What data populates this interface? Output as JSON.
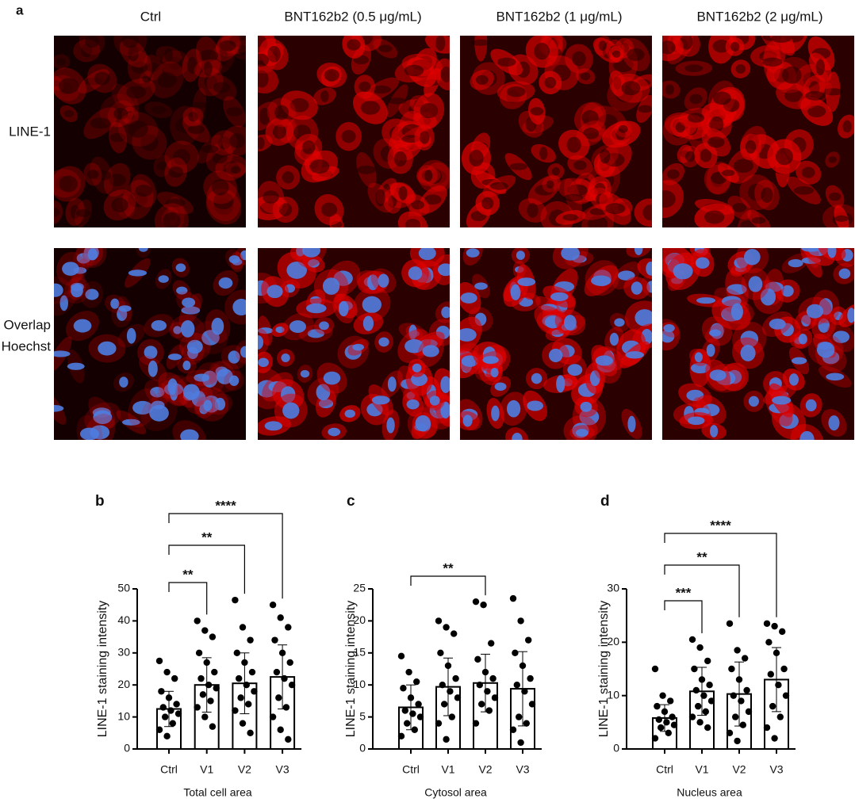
{
  "panel_a": {
    "label": "a",
    "columns": [
      "Ctrl",
      "BNT162b2 (0.5 μg/mL)",
      "BNT162b2 (1 μg/mL)",
      "BNT162b2 (2 μg/mL)"
    ],
    "rows": [
      [
        "LINE-1"
      ],
      [
        "Overlap",
        "Hoechst"
      ]
    ]
  },
  "chart_data": [
    {
      "type": "bar",
      "label": "b",
      "ylabel": "LINE-1 staining intensity",
      "xlabel": "Total cell area",
      "categories": [
        "Ctrl",
        "V1",
        "V2",
        "V3"
      ],
      "values": [
        12.5,
        20,
        20.5,
        22.5
      ],
      "errors": [
        5.5,
        8.5,
        9.5,
        10
      ],
      "points": [
        [
          27.5,
          24,
          22,
          18,
          16,
          14,
          13,
          12,
          11,
          10,
          8,
          6,
          4
        ],
        [
          40,
          37,
          35,
          30,
          27,
          24,
          22,
          20,
          19,
          17,
          15,
          13,
          10,
          7
        ],
        [
          46.5,
          38,
          34,
          30,
          27,
          24,
          22,
          20,
          18,
          16,
          14,
          12,
          8,
          5
        ],
        [
          45,
          41,
          38,
          34,
          30,
          27,
          24,
          22,
          20,
          16,
          13,
          10,
          6,
          3
        ]
      ],
      "color": "#ffffff",
      "point_color": "#000000",
      "ylim": [
        0,
        50
      ],
      "yticks": [
        0,
        10,
        20,
        30,
        40,
        50
      ],
      "annotations": [
        {
          "from": "Ctrl",
          "to": "V1",
          "label": "**"
        },
        {
          "from": "Ctrl",
          "to": "V2",
          "label": "**"
        },
        {
          "from": "Ctrl",
          "to": "V3",
          "label": "****"
        }
      ]
    },
    {
      "type": "bar",
      "label": "c",
      "ylabel": "LINE-1 staining intensity",
      "xlabel": "Cytosol area",
      "categories": [
        "Ctrl",
        "V1",
        "V2",
        "V3"
      ],
      "values": [
        6.5,
        9.7,
        10.3,
        9.4
      ],
      "errors": [
        3.5,
        4.5,
        4.5,
        5.8
      ],
      "points": [
        [
          14.5,
          12,
          10.5,
          9.5,
          8,
          7,
          6,
          5.5,
          5,
          4,
          3,
          2
        ],
        [
          20,
          19,
          18,
          15,
          13,
          11,
          10,
          9,
          8,
          7,
          5,
          4,
          1.5
        ],
        [
          23,
          22.5,
          16.5,
          14,
          12,
          11,
          10,
          9,
          8,
          7,
          6,
          4
        ],
        [
          23.5,
          20,
          17,
          15,
          13,
          11,
          10,
          9,
          7,
          5,
          4,
          3,
          1
        ]
      ],
      "color": "#ffffff",
      "point_color": "#000000",
      "ylim": [
        0,
        25
      ],
      "yticks": [
        0,
        5,
        10,
        15,
        20,
        25
      ],
      "annotations": [
        {
          "from": "Ctrl",
          "to": "V2",
          "label": "**"
        }
      ]
    },
    {
      "type": "bar",
      "label": "d",
      "ylabel": "LINE-1 staining intensity",
      "xlabel": "Nucleus area",
      "categories": [
        "Ctrl",
        "V1",
        "V2",
        "V3"
      ],
      "values": [
        5.8,
        10.8,
        10.3,
        13
      ],
      "errors": [
        2.5,
        4.5,
        6,
        6
      ],
      "points": [
        [
          15,
          10,
          9,
          8,
          7,
          6,
          5.5,
          5,
          4.5,
          4,
          3,
          2
        ],
        [
          20.5,
          19,
          16.5,
          15,
          13,
          12,
          11,
          10,
          9,
          8,
          7,
          6,
          5,
          4
        ],
        [
          23.5,
          18.5,
          17,
          15,
          13,
          11,
          10,
          9,
          7,
          6,
          4.5,
          3,
          1.5
        ],
        [
          23.5,
          23,
          22,
          20,
          18,
          15,
          14,
          12,
          10,
          8,
          6,
          4,
          2
        ]
      ],
      "color": "#ffffff",
      "point_color": "#000000",
      "ylim": [
        0,
        30
      ],
      "yticks": [
        0,
        10,
        20,
        30
      ],
      "annotations": [
        {
          "from": "Ctrl",
          "to": "V1",
          "label": "***"
        },
        {
          "from": "Ctrl",
          "to": "V2",
          "label": "**"
        },
        {
          "from": "Ctrl",
          "to": "V3",
          "label": "****"
        }
      ]
    }
  ]
}
